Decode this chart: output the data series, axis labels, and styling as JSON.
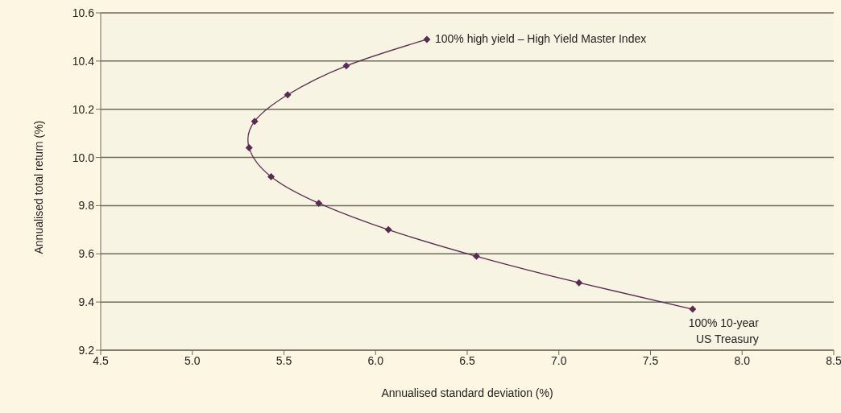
{
  "chart_data": {
    "type": "line",
    "xlabel": "Annualised standard deviation (%)",
    "ylabel": "Annualised total return (%)",
    "x": [
      6.28,
      5.84,
      5.52,
      5.34,
      5.31,
      5.43,
      5.69,
      6.07,
      6.55,
      7.11,
      7.73
    ],
    "series": [
      {
        "color": "#5a2a52",
        "values": [
          10.49,
          10.38,
          10.26,
          10.15,
          10.04,
          9.92,
          9.81,
          9.7,
          9.59,
          9.48,
          9.37
        ]
      }
    ],
    "xlim": [
      4.5,
      8.5
    ],
    "xticks": [
      {
        "value": 4.5,
        "label": "4.5"
      },
      {
        "value": 5,
        "label": "5.0"
      },
      {
        "value": 5.5,
        "label": "5.5"
      },
      {
        "value": 6,
        "label": "6.0"
      },
      {
        "value": 6.5,
        "label": "6.5"
      },
      {
        "value": 7,
        "label": "7.0"
      },
      {
        "value": 7.5,
        "label": "7.5"
      },
      {
        "value": 8,
        "label": "8.0"
      },
      {
        "value": 8.5,
        "label": "8.5"
      }
    ],
    "ylim": [
      9.2,
      10.6
    ],
    "yticks": [
      {
        "value": 9.2,
        "label": "9.2"
      },
      {
        "value": 9.4,
        "label": "9.4"
      },
      {
        "value": 9.6,
        "label": "9.6"
      },
      {
        "value": 9.8,
        "label": "9.8"
      },
      {
        "value": 10,
        "label": "10.0"
      },
      {
        "value": 10.2,
        "label": "10.2"
      },
      {
        "value": 10.4,
        "label": "10.4"
      },
      {
        "value": 10.6,
        "label": "10.6"
      }
    ],
    "grid": "y",
    "marker": "diamond",
    "line_style": "solid",
    "annotations": [
      {
        "text": "100% high yield – High Yield Master Index",
        "x": 6.28,
        "y": 10.49
      },
      {
        "text": "100% 10-year\nUS Treasury",
        "x": 7.73,
        "y": 9.37
      }
    ]
  }
}
